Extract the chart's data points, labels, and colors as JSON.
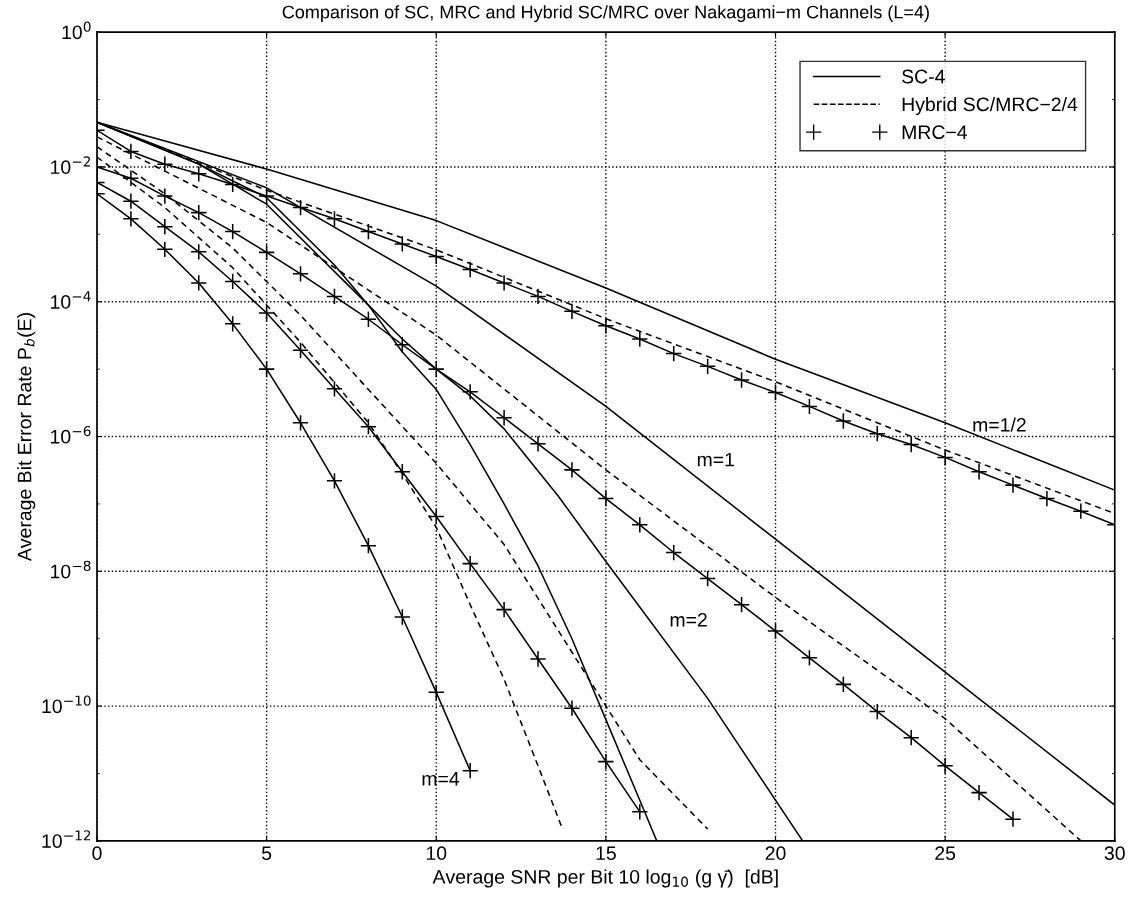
{
  "chart_data": {
    "type": "line",
    "title": "Comparison of SC, MRC and Hybrid SC/MRC over Nakagami−m Channels (L=4)",
    "xlabel": "Average SNR per Bit 10 log$_{10}$ (g γ̄)  [dB]",
    "ylabel": "Average Bit Error Rate P$_{b}$(E)",
    "log": "y",
    "grid": true,
    "legend": "top right",
    "xlim": [
      0,
      30
    ],
    "xticks": [
      0,
      5,
      10,
      15,
      20,
      25,
      30
    ],
    "ylim": [
      1e-12,
      1
    ],
    "yticks": [
      {
        "value": 1,
        "label": "10$^{0}$"
      },
      {
        "value": 0.1,
        "label": null
      },
      {
        "value": 0.01,
        "label": "10$^{−2}$"
      },
      {
        "value": 0.001,
        "label": null
      },
      {
        "value": 0.0001,
        "label": "10$^{−4}$"
      },
      {
        "value": 1e-05,
        "label": null
      },
      {
        "value": 1e-06,
        "label": "10$^{−6}$"
      },
      {
        "value": 1e-07,
        "label": null
      },
      {
        "value": 1e-08,
        "label": "10$^{−8}$"
      },
      {
        "value": 1e-09,
        "label": null
      },
      {
        "value": 1e-10,
        "label": "10$^{−10}$"
      },
      {
        "value": 1e-11,
        "label": null
      },
      {
        "value": 1e-12,
        "label": "10$^{−12}$"
      }
    ],
    "annotations": [
      {
        "text": "m=1/2",
        "x": 26.6,
        "y": 7.6e-07
      },
      {
        "text": "m=1",
        "x": 17.1,
        "y": 4.3e-07
      },
      {
        "text": "m=2",
        "x": 16.3,
        "y": 1.8e-09
      },
      {
        "text": "m=4",
        "x": 11.1,
        "y": 7.9e-12
      }
    ],
    "series": [
      {
        "name": "SC-4",
        "color": "#000000",
        "line_style": "solid",
        "marker": "none",
        "x": [
          0,
          5,
          10,
          15,
          20,
          25,
          30
        ],
        "values": [
          0.046,
          0.0093,
          0.0016,
          0.00016,
          1.4e-05,
          1.6e-06,
          1.6e-07
        ]
      },
      {
        "name": "Hybrid SC/MRC−2/4",
        "color": "#000000",
        "line_style": "dashed",
        "marker": "none",
        "x": [
          0,
          5,
          10,
          15,
          20,
          25,
          30
        ],
        "values": [
          0.046,
          0.0045,
          0.00059,
          5.6e-05,
          6.5e-06,
          6.3e-07,
          7.2e-08
        ]
      },
      {
        "name": "MRC−4",
        "color": "#000000",
        "line_style": "solid",
        "marker": "cross",
        "x": [
          0,
          1,
          2,
          3,
          4,
          5,
          6,
          7,
          8,
          9,
          10,
          11,
          12,
          13,
          14,
          15,
          16,
          17,
          18,
          19,
          20,
          21,
          22,
          23,
          24,
          25,
          26,
          27,
          28,
          29,
          30
        ],
        "values": [
          0.035,
          0.017,
          0.011,
          0.0079,
          0.0055,
          0.0037,
          0.0025,
          0.0017,
          0.0011,
          0.00072,
          0.00047,
          0.0003,
          0.00019,
          0.00012,
          7.2e-05,
          4.4e-05,
          2.8e-05,
          1.7e-05,
          1.1e-05,
          6.9e-06,
          4.5e-06,
          2.8e-06,
          1.7e-06,
          1.1e-06,
          7.6e-07,
          4.9e-07,
          3e-07,
          1.9e-07,
          1.2e-07,
          7.8e-08,
          4.9e-08
        ]
      },
      {
        "color": "#000000",
        "line_style": "solid",
        "marker": "none",
        "x": [
          0,
          5,
          10,
          15,
          20,
          25,
          30
        ],
        "values": [
          0.046,
          0.0049,
          0.00017,
          2.8e-06,
          3e-08,
          3.2e-10,
          3.4e-12
        ]
      },
      {
        "color": "#000000",
        "line_style": "dashed",
        "marker": "none",
        "x": [
          0,
          5,
          10,
          15,
          20,
          25,
          29
        ],
        "values": [
          0.028,
          0.0015,
          3.2e-05,
          3.2e-07,
          4.1e-09,
          6.5e-11,
          1e-12
        ]
      },
      {
        "color": "#000000",
        "line_style": "solid",
        "marker": "cross",
        "x": [
          0,
          1,
          2,
          3,
          4,
          5,
          6,
          7,
          8,
          9,
          10,
          11,
          12,
          13,
          14,
          15,
          16,
          17,
          18,
          19,
          20,
          21,
          22,
          23,
          24,
          25,
          26,
          27
        ],
        "values": [
          0.01,
          0.0068,
          0.0037,
          0.0021,
          0.0011,
          0.00054,
          0.00026,
          0.00012,
          5.5e-05,
          2.3e-05,
          1e-05,
          4.6e-06,
          1.9e-06,
          7.8e-07,
          3.2e-07,
          1.2e-07,
          4.9e-08,
          1.9e-08,
          7.8e-09,
          3.2e-09,
          1.3e-09,
          5.2e-10,
          2.1e-10,
          8.3e-11,
          3.4e-11,
          1.3e-11,
          5.2e-12,
          2.1e-12
        ]
      },
      {
        "color": "#000000",
        "line_style": "solid",
        "marker": "none",
        "x": [
          0,
          3,
          5,
          7,
          8,
          9,
          10,
          11,
          12,
          13.6,
          15,
          18,
          20.8
        ],
        "values": [
          0.046,
          0.011,
          0.0028,
          0.00028,
          8.9e-05,
          2.8e-05,
          1e-05,
          4e-06,
          1.3e-06,
          1.3e-07,
          1.4e-08,
          1.3e-10,
          1e-12
        ]
      },
      {
        "color": "#000000",
        "line_style": "dashed",
        "marker": "none",
        "x": [
          0,
          2,
          4,
          6,
          8,
          10,
          12,
          14,
          16,
          18
        ],
        "values": [
          0.02,
          0.004,
          0.00063,
          6.3e-05,
          5e-06,
          4e-07,
          2.5e-08,
          6.3e-10,
          1.6e-11,
          1.5e-12
        ]
      },
      {
        "color": "#000000",
        "line_style": "solid",
        "marker": "cross",
        "x": [
          0,
          1,
          2,
          3,
          4,
          5,
          6,
          7,
          8,
          9,
          10,
          11,
          12,
          13,
          14,
          15,
          16
        ],
        "values": [
          0.0059,
          0.0031,
          0.0013,
          0.00055,
          0.0002,
          6.8e-05,
          1.9e-05,
          5.1e-06,
          1.4e-06,
          3e-07,
          6.5e-08,
          1.3e-08,
          2.7e-09,
          5e-10,
          9.3e-11,
          1.5e-11,
          2.7e-12
        ]
      },
      {
        "color": "#000000",
        "line_style": "solid",
        "marker": "none",
        "x": [
          0,
          3,
          5,
          7,
          8,
          9,
          10,
          11,
          12,
          13,
          14,
          15,
          16,
          16.5
        ],
        "values": [
          0.046,
          0.011,
          0.0035,
          0.00035,
          8.9e-05,
          1.8e-05,
          5e-06,
          7.6e-07,
          1e-07,
          1.2e-08,
          1e-09,
          6.3e-11,
          4e-12,
          1e-12
        ]
      },
      {
        "color": "#000000",
        "line_style": "dashed",
        "marker": "none",
        "x": [
          0,
          2,
          4,
          6,
          8,
          9,
          10,
          11,
          12,
          13,
          13.7
        ],
        "values": [
          0.014,
          0.0025,
          0.00032,
          2.5e-05,
          1.6e-06,
          2.8e-07,
          4.5e-08,
          3.2e-09,
          2.5e-10,
          1.3e-11,
          1.6e-12
        ]
      },
      {
        "color": "#000000",
        "line_style": "solid",
        "marker": "cross",
        "x": [
          0,
          1,
          2,
          3,
          4,
          5,
          6,
          7,
          8,
          9,
          10,
          11
        ],
        "values": [
          0.004,
          0.0017,
          0.0006,
          0.00019,
          4.7e-05,
          1e-05,
          1.6e-06,
          2.2e-07,
          2.4e-08,
          2.1e-09,
          1.6e-10,
          1.1e-11
        ]
      }
    ]
  }
}
